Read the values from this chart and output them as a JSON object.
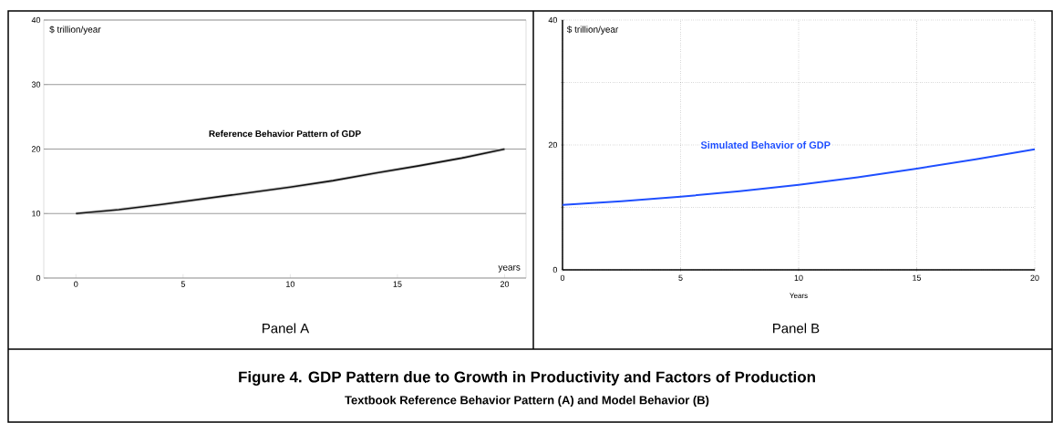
{
  "chart_data": [
    {
      "type": "line",
      "title": "Reference Behavior Pattern of GDP",
      "xlabel": "years",
      "ylabel": "$ trillion/year",
      "x": [
        0,
        2,
        4,
        6,
        8,
        10,
        12,
        14,
        16,
        18,
        20
      ],
      "series": [
        {
          "color": "#111111",
          "values": [
            10,
            10.6,
            11.4,
            12.3,
            13.2,
            14.1,
            15.1,
            16.3,
            17.4,
            18.6,
            20
          ]
        }
      ],
      "xlim": [
        -1.5,
        21
      ],
      "ylim": [
        0,
        40
      ],
      "xticks": [
        0,
        5,
        10,
        15,
        20
      ],
      "yticks": [
        0,
        10,
        20,
        30,
        40
      ],
      "grid": "y",
      "annotations": [
        "Panel A"
      ]
    },
    {
      "type": "line",
      "title": "Simulated Behavior of GDP",
      "xlabel": "Years",
      "ylabel": "$ trillion/year",
      "x": [
        0,
        2.5,
        5,
        7.5,
        10,
        12.5,
        15,
        17.5,
        20
      ],
      "series": [
        {
          "color": "#1f4fff",
          "values": [
            10.4,
            11.0,
            11.7,
            12.6,
            13.6,
            14.8,
            16.2,
            17.7,
            19.3
          ]
        }
      ],
      "xlim": [
        0,
        20
      ],
      "ylim": [
        0,
        40
      ],
      "xticks": [
        0,
        5,
        10,
        15,
        20
      ],
      "yticks": [
        0,
        {
          "value": 10,
          "label": null
        },
        20,
        {
          "value": 30,
          "label": null
        },
        40
      ],
      "grid": true,
      "annotations": [
        "Panel B",
        "Figure 4.  GDP Pattern due to Growth in Productivity and Factors of Production",
        "Textbook Reference Behavior Pattern (A) and Model Behavior (B)"
      ]
    }
  ]
}
